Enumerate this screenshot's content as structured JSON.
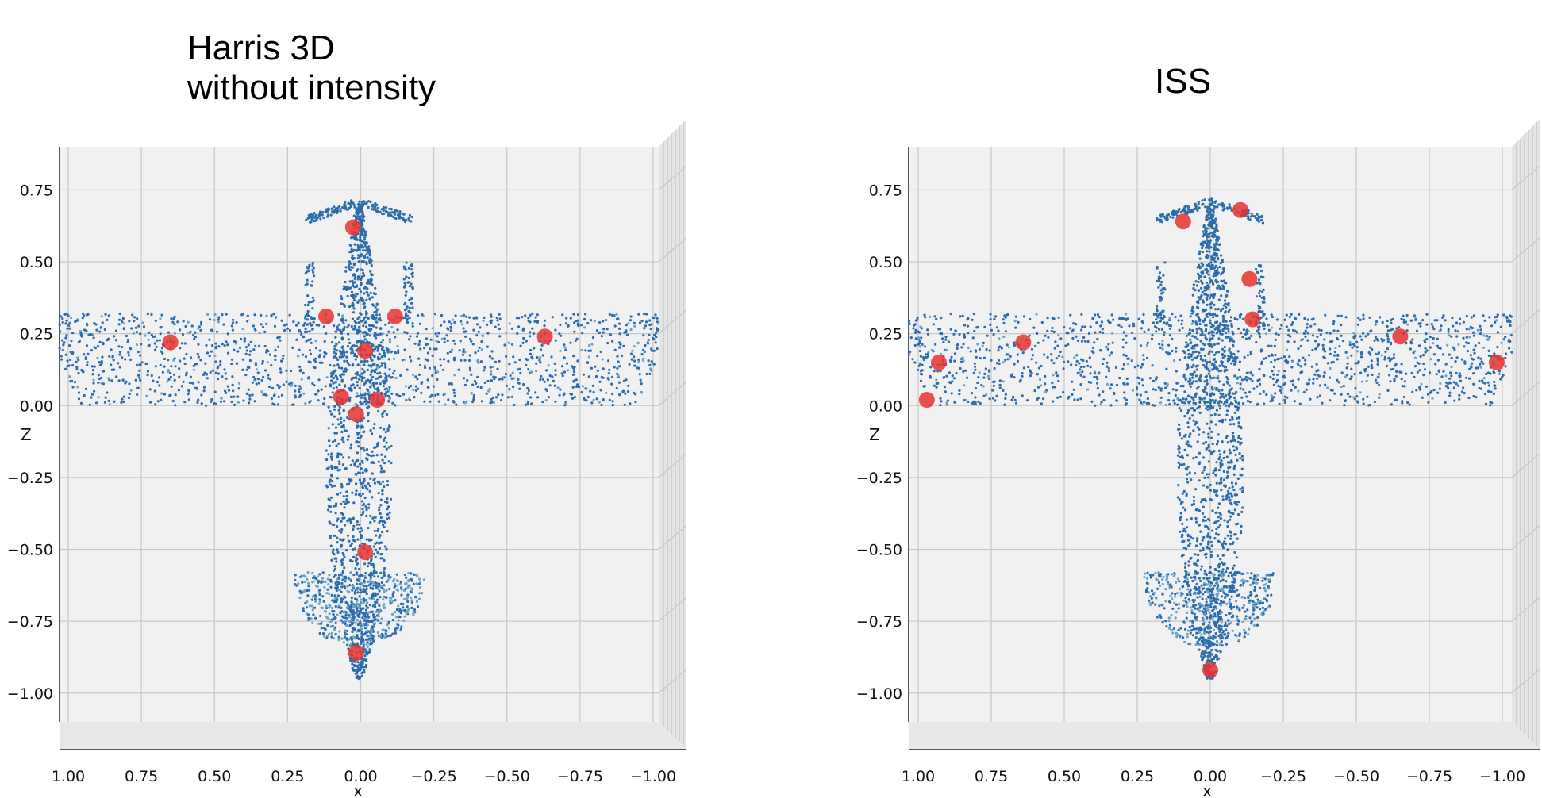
{
  "chart_data": [
    {
      "type": "scatter",
      "title_lines": [
        "Harris 3D",
        "without intensity"
      ],
      "xlabel": "x",
      "zlabel": "Z",
      "x_ticks": [
        "1.00",
        "0.75",
        "0.50",
        "0.25",
        "0.00",
        "−0.25",
        "−0.50",
        "−0.75",
        "−1.00"
      ],
      "z_ticks": [
        "0.75",
        "0.50",
        "0.25",
        "0.00",
        "−0.25",
        "−0.50",
        "−0.75",
        "−1.00"
      ],
      "xlim": [
        1.0,
        -1.0
      ],
      "zlim": [
        -1.1,
        0.9
      ],
      "colors": {
        "cloud": "#2b6cad",
        "cloud_light": "#6aa6c9",
        "keypoint": "#e8322f"
      },
      "series": [
        {
          "name": "keypoints",
          "x": [
            0.63,
            -0.62,
            0.02,
            -0.02,
            0.06,
            -0.06,
            0.01,
            -0.02,
            0.01,
            0.11,
            -0.12
          ],
          "z": [
            0.22,
            0.24,
            0.62,
            0.19,
            0.03,
            0.02,
            -0.03,
            -0.51,
            -0.86,
            0.31,
            0.31
          ]
        }
      ]
    },
    {
      "type": "scatter",
      "title_lines": [
        "ISS"
      ],
      "xlabel": "x",
      "zlabel": "Z",
      "x_ticks": [
        "1.00",
        "0.75",
        "0.50",
        "0.25",
        "0.00",
        "−0.25",
        "−0.50",
        "−0.75",
        "−1.00"
      ],
      "z_ticks": [
        "0.75",
        "0.50",
        "0.25",
        "0.00",
        "−0.25",
        "−0.50",
        "−0.75",
        "−1.00"
      ],
      "xlim": [
        1.0,
        -1.0
      ],
      "zlim": [
        -1.1,
        0.9
      ],
      "colors": {
        "cloud": "#2b6cad",
        "cloud_light": "#6aa6c9",
        "keypoint": "#e8322f"
      },
      "series": [
        {
          "name": "keypoints",
          "x": [
            0.94,
            0.9,
            0.62,
            0.09,
            -0.1,
            -0.13,
            -0.14,
            -0.63,
            -0.95,
            0.0
          ],
          "z": [
            0.02,
            0.15,
            0.22,
            0.64,
            0.68,
            0.44,
            0.3,
            0.24,
            0.15,
            -0.92
          ]
        }
      ]
    }
  ]
}
